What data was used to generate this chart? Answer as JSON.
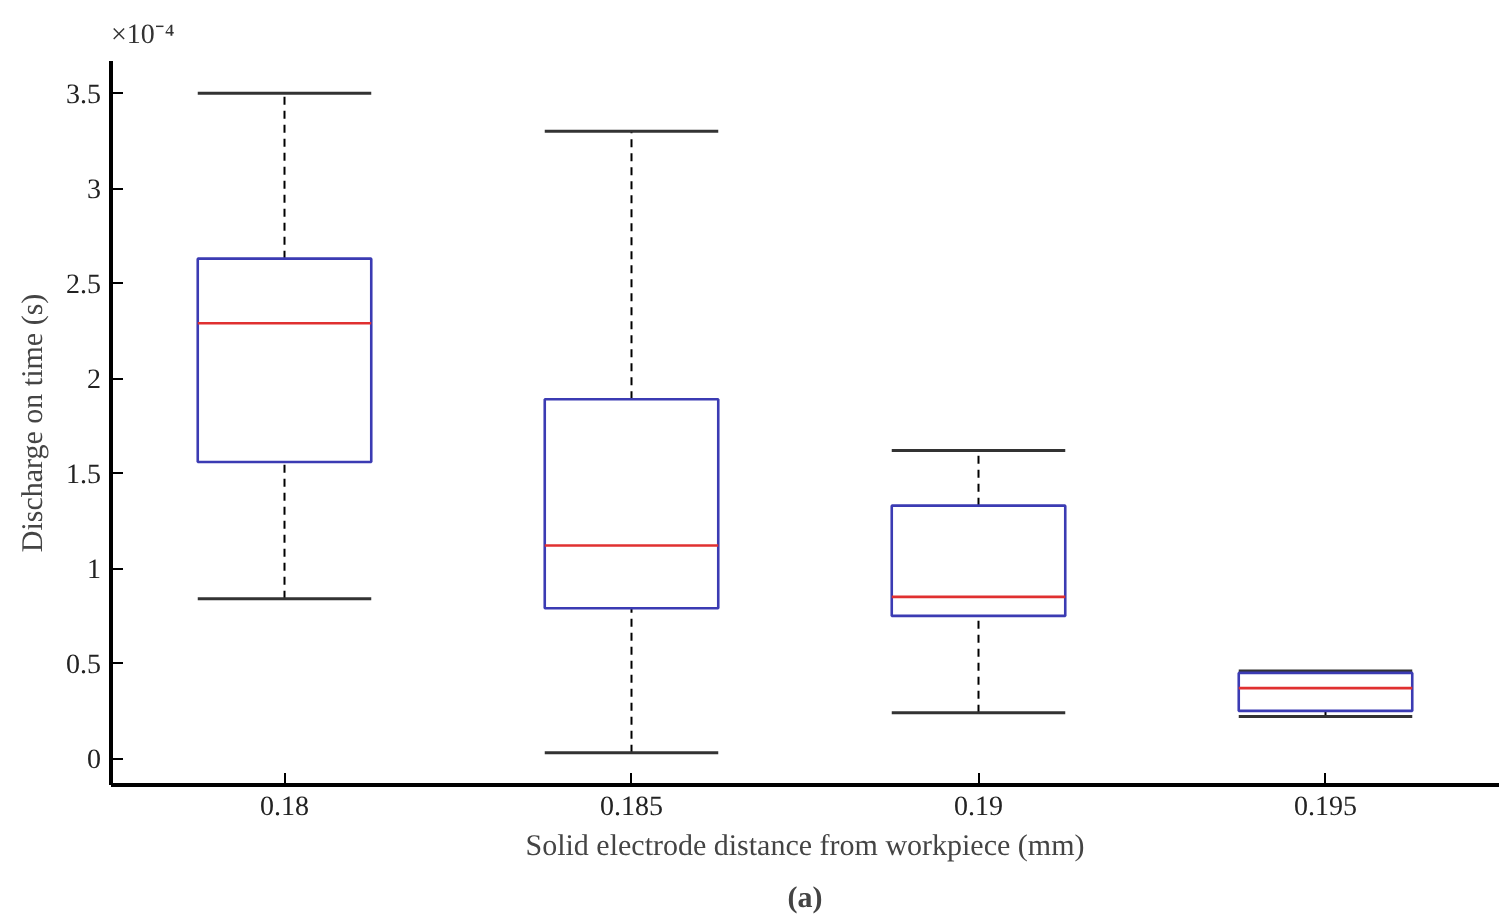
{
  "chart_data": {
    "type": "box",
    "xlabel": "Solid electrode distance from workpiece (mm)",
    "ylabel": "Discharge on time (s)",
    "annotations": [
      "×10⁻⁴",
      "(a)"
    ],
    "categories": [
      "0.18",
      "0.185",
      "0.19",
      "0.195"
    ],
    "ylim": [
      -0.14,
      3.67
    ],
    "yticks": [
      {
        "value": 0,
        "label": "0"
      },
      0.5,
      {
        "value": 1,
        "label": "1"
      },
      1.5,
      {
        "value": 2,
        "label": "2"
      },
      2.5,
      {
        "value": 3,
        "label": "3"
      },
      3.5
    ],
    "series": [
      {
        "color": "#3b3bb3",
        "boxes": [
          {
            "low": 0.84,
            "q1": 1.56,
            "median": 2.29,
            "q3": 2.63,
            "high": 3.5
          },
          {
            "low": 0.03,
            "q1": 0.79,
            "median": 1.12,
            "q3": 1.89,
            "high": 3.3
          },
          {
            "low": 0.24,
            "q1": 0.75,
            "median": 0.85,
            "q3": 1.33,
            "high": 1.62
          },
          {
            "low": 0.22,
            "q1": 0.25,
            "median": 0.37,
            "q3": 0.45,
            "high": 0.46
          }
        ]
      }
    ]
  }
}
